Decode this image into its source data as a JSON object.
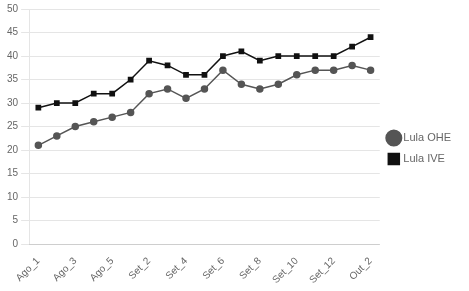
{
  "chart_data": {
    "type": "line",
    "categories": [
      "Ago_1",
      null,
      "Ago_3",
      null,
      "Ago_5",
      null,
      "Set_2",
      null,
      "Set_4",
      null,
      "Set_6",
      null,
      "Set_8",
      null,
      "Set_10",
      null,
      "Set_12",
      null,
      "Out_2"
    ],
    "series": [
      {
        "name": "Lula OHE",
        "color": "#555555",
        "marker": "circle",
        "values": [
          21,
          23,
          25,
          26,
          27,
          28,
          32,
          33,
          31,
          33,
          37,
          34,
          33,
          34,
          36,
          37,
          37,
          38,
          37
        ]
      },
      {
        "name": "Lula IVE",
        "color": "#111111",
        "marker": "square",
        "values": [
          29,
          30,
          30,
          32,
          32,
          35,
          39,
          38,
          36,
          36,
          40,
          41,
          39,
          40,
          40,
          40,
          40,
          42,
          44
        ]
      }
    ],
    "ylim": [
      0,
      50
    ],
    "yticks": [
      0,
      5,
      10,
      15,
      20,
      25,
      30,
      35,
      40,
      45,
      50
    ],
    "grid": "y",
    "legend": "right"
  }
}
